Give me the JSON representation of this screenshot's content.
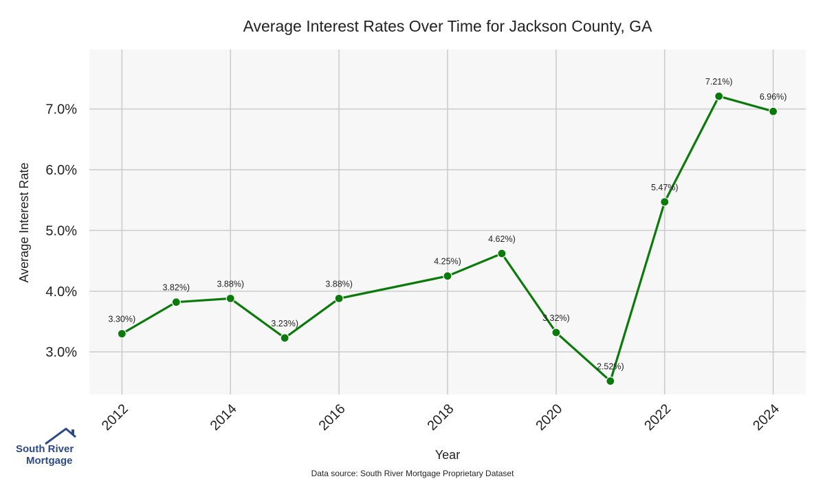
{
  "chart_data": {
    "type": "line",
    "title": "Average Interest Rates Over Time for Jackson County, GA",
    "xlabel": "Year",
    "ylabel": "Average Interest Rate",
    "x": [
      2012,
      2013,
      2014,
      2015,
      2016,
      2018,
      2019,
      2020,
      2021,
      2022,
      2023,
      2024
    ],
    "series": [
      {
        "values": [
          3.3,
          3.82,
          3.88,
          3.23,
          3.88,
          4.25,
          4.62,
          3.32,
          2.52,
          5.47,
          7.21,
          6.96
        ]
      }
    ],
    "data_labels": [
      "3.30%)",
      "3.82%)",
      "3.88%)",
      "3.23%)",
      "3.88%)",
      "4.25%)",
      "4.62%)",
      "3.32%)",
      "2.52%)",
      "5.47%)",
      "7.21%)",
      "6.96%)"
    ],
    "x_ticks": [
      "2012",
      "2014",
      "2016",
      "2018",
      "2020",
      "2022",
      "2024"
    ],
    "y_ticks": [
      "3.0%",
      "4.0%",
      "5.0%",
      "6.0%",
      "7.0%"
    ],
    "y_tick_values": [
      3,
      4,
      5,
      6,
      7
    ],
    "xlim": [
      2011.4,
      2024.6
    ],
    "ylim": [
      2.3,
      7.98
    ],
    "grid": true,
    "colors": {
      "line": "#0a7a0a",
      "plot_bg": "#f7f7f7",
      "grid": "#cccccc"
    }
  },
  "source_note": "Data source: South River Mortgage Proprietary Dataset",
  "logo": {
    "line1": "South River",
    "line2": "Mortgage",
    "icon": "house-roof-icon",
    "color": "#2d4a86"
  }
}
